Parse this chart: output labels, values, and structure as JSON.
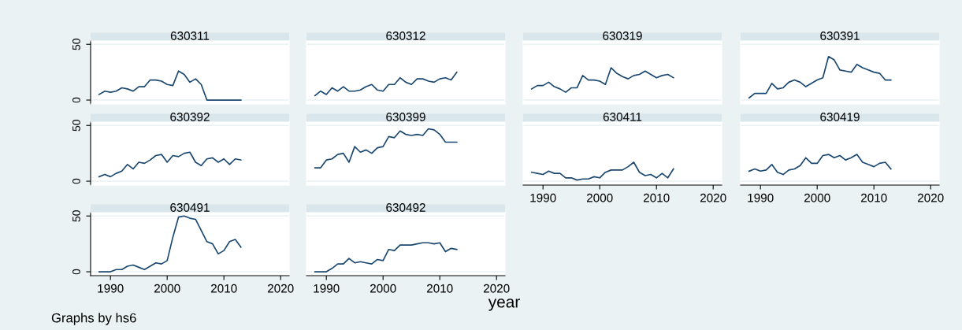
{
  "chart_data": [
    {
      "type": "line",
      "title": "630311",
      "x": [
        1988,
        1989,
        1990,
        1991,
        1992,
        1993,
        1994,
        1995,
        1996,
        1997,
        1998,
        1999,
        2000,
        2001,
        2002,
        2003,
        2004,
        2005,
        2006,
        2007,
        2008,
        2009,
        2010,
        2011,
        2012,
        2013
      ],
      "series": [
        {
          "color": "#1a476f",
          "values": [
            5,
            8,
            7,
            8,
            11,
            10,
            8,
            12,
            12,
            18,
            18,
            17,
            14,
            13,
            26,
            23,
            16,
            19,
            14,
            0,
            0,
            0,
            0,
            0,
            0,
            0
          ]
        }
      ],
      "xlim": [
        1986.5,
        2021.5
      ],
      "ylim": [
        -3.5,
        53
      ],
      "xticks": [
        1990,
        2000,
        2010,
        2020
      ],
      "yticks": [
        0,
        50
      ],
      "tick_labels": "y",
      "grid": "y"
    },
    {
      "type": "line",
      "title": "630312",
      "x": [
        1988,
        1989,
        1990,
        1991,
        1992,
        1993,
        1994,
        1995,
        1996,
        1997,
        1998,
        1999,
        2000,
        2001,
        2002,
        2003,
        2004,
        2005,
        2006,
        2007,
        2008,
        2009,
        2010,
        2011,
        2012,
        2013
      ],
      "series": [
        {
          "color": "#1a476f",
          "values": [
            4,
            8,
            5,
            11,
            8,
            12,
            8,
            8,
            9,
            12,
            14,
            9,
            8,
            14,
            14,
            20,
            16,
            14,
            19,
            19,
            17,
            16,
            19,
            20,
            18,
            25
          ]
        }
      ],
      "xlim": [
        1986.5,
        2021.5
      ],
      "ylim": [
        -3.5,
        53
      ],
      "xticks": [
        1990,
        2000,
        2010,
        2020
      ],
      "yticks": [
        0,
        50
      ],
      "tick_labels": false,
      "grid": "y"
    },
    {
      "type": "line",
      "title": "630319",
      "x": [
        1988,
        1989,
        1990,
        1991,
        1992,
        1993,
        1994,
        1995,
        1996,
        1997,
        1998,
        1999,
        2000,
        2001,
        2002,
        2003,
        2004,
        2005,
        2006,
        2007,
        2008,
        2009,
        2010,
        2011,
        2012,
        2013
      ],
      "series": [
        {
          "color": "#1a476f",
          "values": [
            10,
            13,
            13,
            16,
            12,
            10,
            7,
            11,
            11,
            22,
            18,
            18,
            17,
            14,
            29,
            24,
            21,
            19,
            22,
            23,
            26,
            23,
            20,
            22,
            23,
            20
          ]
        }
      ],
      "xlim": [
        1986.5,
        2021.5
      ],
      "ylim": [
        -3.5,
        53
      ],
      "xticks": [
        1990,
        2000,
        2010,
        2020
      ],
      "yticks": [
        0,
        50
      ],
      "tick_labels": false,
      "grid": "y"
    },
    {
      "type": "line",
      "title": "630391",
      "x": [
        1988,
        1989,
        1990,
        1991,
        1992,
        1993,
        1994,
        1995,
        1996,
        1997,
        1998,
        1999,
        2000,
        2001,
        2002,
        2003,
        2004,
        2005,
        2006,
        2007,
        2008,
        2009,
        2010,
        2011,
        2012,
        2013
      ],
      "series": [
        {
          "color": "#1a476f",
          "values": [
            2,
            6,
            6,
            6,
            15,
            10,
            11,
            16,
            18,
            16,
            12,
            15,
            18,
            20,
            39,
            36,
            27,
            26,
            25,
            32,
            29,
            27,
            25,
            24,
            18,
            18
          ]
        }
      ],
      "xlim": [
        1986.5,
        2021.5
      ],
      "ylim": [
        -3.5,
        53
      ],
      "xticks": [
        1990,
        2000,
        2010,
        2020
      ],
      "yticks": [
        0,
        50
      ],
      "tick_labels": false,
      "grid": "y"
    },
    {
      "type": "line",
      "title": "630392",
      "x": [
        1988,
        1989,
        1990,
        1991,
        1992,
        1993,
        1994,
        1995,
        1996,
        1997,
        1998,
        1999,
        2000,
        2001,
        2002,
        2003,
        2004,
        2005,
        2006,
        2007,
        2008,
        2009,
        2010,
        2011,
        2012,
        2013
      ],
      "series": [
        {
          "color": "#1a476f",
          "values": [
            4,
            6,
            4,
            7,
            9,
            15,
            11,
            17,
            16,
            19,
            23,
            24,
            17,
            23,
            22,
            25,
            26,
            17,
            14,
            20,
            21,
            17,
            20,
            15,
            20,
            19
          ]
        }
      ],
      "xlim": [
        1986.5,
        2021.5
      ],
      "ylim": [
        -3.5,
        53
      ],
      "xticks": [
        1990,
        2000,
        2010,
        2020
      ],
      "yticks": [
        0,
        50
      ],
      "tick_labels": "y",
      "grid": "y"
    },
    {
      "type": "line",
      "title": "630399",
      "x": [
        1988,
        1989,
        1990,
        1991,
        1992,
        1993,
        1994,
        1995,
        1996,
        1997,
        1998,
        1999,
        2000,
        2001,
        2002,
        2003,
        2004,
        2005,
        2006,
        2007,
        2008,
        2009,
        2010,
        2011,
        2012,
        2013
      ],
      "series": [
        {
          "color": "#1a476f",
          "values": [
            12,
            12,
            19,
            20,
            24,
            25,
            17,
            31,
            26,
            28,
            25,
            30,
            31,
            40,
            39,
            45,
            42,
            41,
            42,
            41,
            47,
            46,
            42,
            35,
            35,
            35
          ]
        }
      ],
      "xlim": [
        1986.5,
        2021.5
      ],
      "ylim": [
        -3.5,
        53
      ],
      "xticks": [
        1990,
        2000,
        2010,
        2020
      ],
      "yticks": [
        0,
        50
      ],
      "tick_labels": false,
      "grid": "y"
    },
    {
      "type": "line",
      "title": "630411",
      "x": [
        1988,
        1989,
        1990,
        1991,
        1992,
        1993,
        1994,
        1995,
        1996,
        1997,
        1998,
        1999,
        2000,
        2001,
        2002,
        2003,
        2004,
        2005,
        2006,
        2007,
        2008,
        2009,
        2010,
        2011,
        2012,
        2013
      ],
      "series": [
        {
          "color": "#1a476f",
          "values": [
            8,
            7,
            6,
            9,
            7,
            7,
            3,
            3,
            1,
            2,
            2,
            4,
            3,
            8,
            10,
            10,
            10,
            13,
            17,
            8,
            5,
            6,
            3,
            7,
            3,
            11
          ]
        }
      ],
      "xlim": [
        1986.5,
        2021.5
      ],
      "ylim": [
        -3.5,
        53
      ],
      "xticks": [
        1990,
        2000,
        2010,
        2020
      ],
      "yticks": [
        0,
        50
      ],
      "tick_labels": "x",
      "grid": "y"
    },
    {
      "type": "line",
      "title": "630419",
      "x": [
        1988,
        1989,
        1990,
        1991,
        1992,
        1993,
        1994,
        1995,
        1996,
        1997,
        1998,
        1999,
        2000,
        2001,
        2002,
        2003,
        2004,
        2005,
        2006,
        2007,
        2008,
        2009,
        2010,
        2011,
        2012,
        2013
      ],
      "series": [
        {
          "color": "#1a476f",
          "values": [
            9,
            11,
            9,
            10,
            15,
            8,
            6,
            10,
            11,
            14,
            21,
            16,
            16,
            23,
            24,
            21,
            23,
            19,
            21,
            24,
            17,
            15,
            13,
            16,
            17,
            11
          ]
        }
      ],
      "xlim": [
        1986.5,
        2021.5
      ],
      "ylim": [
        -3.5,
        53
      ],
      "xticks": [
        1990,
        2000,
        2010,
        2020
      ],
      "yticks": [
        0,
        50
      ],
      "tick_labels": "x",
      "grid": "y"
    },
    {
      "type": "line",
      "title": "630491",
      "x": [
        1988,
        1989,
        1990,
        1991,
        1992,
        1993,
        1994,
        1995,
        1996,
        1997,
        1998,
        1999,
        2000,
        2001,
        2002,
        2003,
        2004,
        2005,
        2006,
        2007,
        2008,
        2009,
        2010,
        2011,
        2012,
        2013
      ],
      "series": [
        {
          "color": "#1a476f",
          "values": [
            0,
            0,
            0,
            2,
            2,
            5,
            6,
            4,
            2,
            5,
            8,
            7,
            10,
            31,
            49,
            50,
            48,
            47,
            37,
            27,
            25,
            16,
            19,
            27,
            29,
            22
          ]
        }
      ],
      "xlim": [
        1986.5,
        2021.5
      ],
      "ylim": [
        -3.5,
        53
      ],
      "xticks": [
        1990,
        2000,
        2010,
        2020
      ],
      "yticks": [
        0,
        50
      ],
      "grid": "y",
      "annotations": [
        "Graphs by hs6"
      ]
    },
    {
      "type": "line",
      "title": "630492",
      "x": [
        1988,
        1989,
        1990,
        1991,
        1992,
        1993,
        1994,
        1995,
        1996,
        1997,
        1998,
        1999,
        2000,
        2001,
        2002,
        2003,
        2004,
        2005,
        2006,
        2007,
        2008,
        2009,
        2010,
        2011,
        2012,
        2013
      ],
      "series": [
        {
          "color": "#1a476f",
          "values": [
            0,
            0,
            0,
            3,
            7,
            7,
            12,
            8,
            9,
            8,
            7,
            11,
            10,
            20,
            19,
            24,
            24,
            24,
            25,
            26,
            26,
            25,
            26,
            18,
            21,
            20
          ]
        }
      ],
      "xlim": [
        1986.5,
        2021.5
      ],
      "ylim": [
        -3.5,
        53
      ],
      "xticks": [
        1990,
        2000,
        2010,
        2020
      ],
      "yticks": [
        0,
        50
      ],
      "tick_labels": "x",
      "grid": "y",
      "xlabel": "year"
    }
  ]
}
